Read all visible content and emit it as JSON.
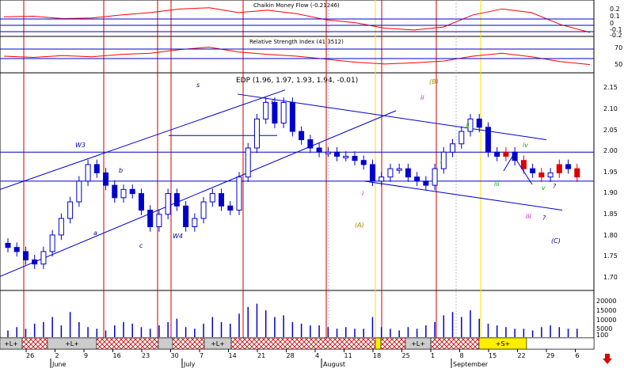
{
  "chart_data": [
    {
      "type": "line",
      "panel": "cmf",
      "title": "Chaikin Money Flow (-0.21246)",
      "y_ticks": [
        "0.2",
        "0.1",
        "0",
        "-0.1",
        "-0.2"
      ],
      "ylim": [
        -0.25,
        0.25
      ],
      "x": [
        0,
        5,
        10,
        15,
        20,
        25,
        30,
        35,
        40,
        45,
        50,
        55,
        60,
        65,
        70,
        75,
        80,
        85,
        90,
        95,
        100
      ],
      "series": [
        {
          "color": "#ff0000",
          "values": [
            0.05,
            0.06,
            0.02,
            0.03,
            0.08,
            0.12,
            0.18,
            0.2,
            0.12,
            0.16,
            0.1,
            0.0,
            -0.05,
            -0.14,
            -0.17,
            -0.12,
            0.08,
            0.18,
            0.12,
            -0.08,
            -0.21
          ]
        }
      ]
    },
    {
      "type": "line",
      "panel": "rsi",
      "title": "Relative Strength Index (41.3512)",
      "y_ticks": [
        "70",
        "50"
      ],
      "ylim": [
        30,
        80
      ],
      "x": [
        0,
        5,
        10,
        15,
        20,
        25,
        30,
        35,
        40,
        45,
        50,
        55,
        60,
        65,
        70,
        75,
        80,
        85,
        90,
        95,
        100
      ],
      "series": [
        {
          "color": "#ff0000",
          "values": [
            55,
            53,
            56,
            54,
            58,
            60,
            66,
            70,
            62,
            58,
            55,
            50,
            45,
            42,
            44,
            47,
            55,
            60,
            54,
            46,
            41
          ]
        }
      ]
    },
    {
      "type": "candlestick",
      "panel": "price",
      "title": "EDP (1.96, 1.97, 1.93, 1.94, -0.01)",
      "y_ticks": [
        "2.15",
        "2.10",
        "2.05",
        "2.00",
        "1.95",
        "1.90",
        "1.85",
        "1.80",
        "1.75",
        "1.70"
      ],
      "ylim": [
        1.67,
        2.18
      ],
      "x_ticks": [
        "26",
        "2",
        "9",
        "16",
        "23",
        "30",
        "7",
        "14",
        "21",
        "28",
        "4",
        "11",
        "18",
        "25",
        "1",
        "8",
        "15",
        "22",
        "29",
        "6"
      ],
      "months": [
        "June",
        "July",
        "August",
        "September"
      ],
      "closes": [
        1.77,
        1.76,
        1.74,
        1.73,
        1.76,
        1.8,
        1.84,
        1.88,
        1.93,
        1.97,
        1.95,
        1.92,
        1.89,
        1.91,
        1.9,
        1.86,
        1.82,
        1.85,
        1.9,
        1.87,
        1.82,
        1.84,
        1.88,
        1.9,
        1.87,
        1.86,
        1.94,
        2.01,
        2.08,
        2.12,
        2.07,
        2.12,
        2.05,
        2.03,
        2.01,
        2.0,
        2.0,
        1.99,
        1.99,
        1.98,
        1.97,
        1.93,
        1.94,
        1.96,
        1.96,
        1.94,
        1.93,
        1.92,
        1.96,
        2.0,
        2.02,
        2.05,
        2.08,
        2.06,
        2.0,
        1.99,
        2.0,
        1.98,
        1.96,
        1.95,
        1.94,
        1.95,
        1.97,
        1.96,
        1.94
      ],
      "wave_labels": [
        "W3",
        "b",
        "a",
        "c",
        "W4",
        "s",
        "s",
        "i",
        "ii",
        "(A)",
        "(B)",
        "i",
        "ii",
        "iii",
        "iv",
        "v",
        "iii",
        "?",
        "?",
        "(C)"
      ]
    },
    {
      "type": "bar",
      "panel": "volume",
      "y_ticks": [
        "20000",
        "15000",
        "10000",
        "5000",
        "100"
      ],
      "ylim": [
        0,
        26000
      ],
      "values": [
        4000,
        6000,
        5000,
        8000,
        9000,
        12000,
        7000,
        15000,
        9000,
        6000,
        5000,
        4000,
        7000,
        9000,
        8000,
        6000,
        5000,
        7000,
        9000,
        11000,
        6000,
        5000,
        8000,
        12000,
        9000,
        8000,
        14000,
        18000,
        20000,
        16000,
        12000,
        13000,
        9000,
        8000,
        7000,
        7000,
        6000,
        5000,
        6000,
        5000,
        5000,
        12000,
        6000,
        5000,
        4000,
        6000,
        5000,
        7000,
        9000,
        13000,
        15000,
        12000,
        16000,
        11000,
        8000,
        7000,
        6000,
        5000,
        5000,
        4000,
        6000,
        7000,
        6000,
        5000,
        5000
      ]
    }
  ],
  "signal_bar": {
    "labels": [
      "+L+",
      "+L+",
      "+L+",
      "+L+",
      "+S+"
    ]
  }
}
